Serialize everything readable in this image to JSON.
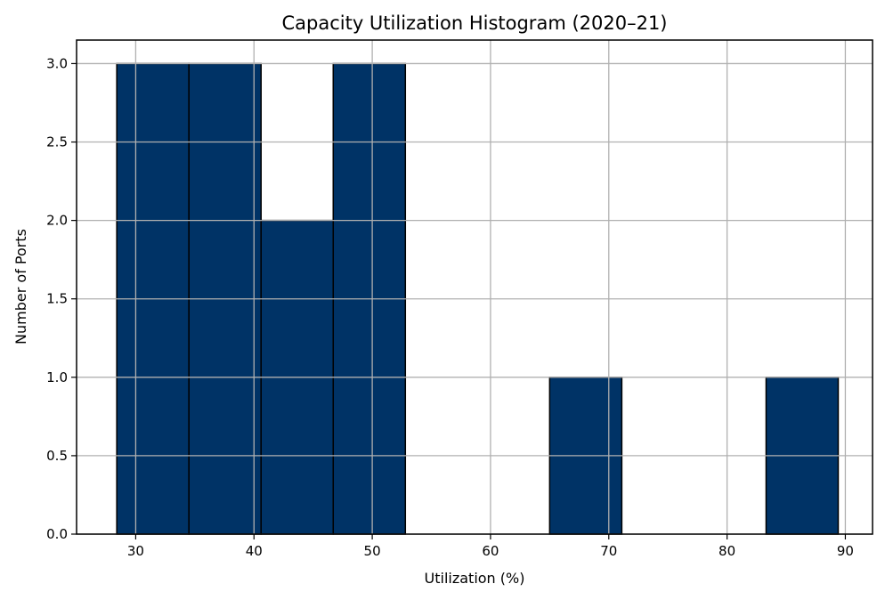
{
  "chart_data": {
    "type": "histogram",
    "title": "Capacity Utilization Histogram (2020–21)",
    "xlabel": "Utilization (%)",
    "ylabel": "Number of Ports",
    "xlim": [
      25.0,
      92.3
    ],
    "ylim": [
      0,
      3.15
    ],
    "xticks": [
      30,
      40,
      50,
      60,
      70,
      80,
      90
    ],
    "yticks": [
      0.0,
      0.5,
      1.0,
      1.5,
      2.0,
      2.5,
      3.0
    ],
    "bin_edges": [
      28.4,
      34.5,
      40.6,
      46.7,
      52.8,
      58.9,
      65.0,
      71.1,
      77.2,
      83.3,
      89.4
    ],
    "counts": [
      3,
      3,
      2,
      3,
      0,
      0,
      1,
      0,
      0,
      1
    ],
    "grid": true,
    "bar_color": "#003366",
    "edge_color": "#000000"
  }
}
